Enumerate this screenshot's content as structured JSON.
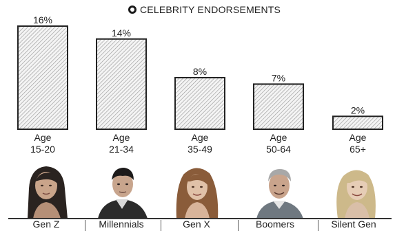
{
  "chart_data": {
    "type": "bar",
    "title": "CELEBRITY ENDORSEMENTS",
    "categories": [
      "Age\n15-20",
      "Age\n21-34",
      "Age\n35-49",
      "Age\n50-64",
      "Age\n65+"
    ],
    "category_lines": [
      [
        "Age",
        "15-20"
      ],
      [
        "Age",
        "21-34"
      ],
      [
        "Age",
        "35-49"
      ],
      [
        "Age",
        "50-64"
      ],
      [
        "Age",
        "65+"
      ]
    ],
    "values": [
      16,
      14,
      8,
      7,
      2
    ],
    "value_labels": [
      "16%",
      "14%",
      "8%",
      "7%",
      "2%"
    ],
    "ylim": [
      0,
      16
    ],
    "grid": false,
    "bar_fill": "hatched-light-gray",
    "bar_stroke": "#222222"
  },
  "generations": [
    "Gen Z",
    "Millennials",
    "Gen X",
    "Boomers",
    "Silent Gen"
  ],
  "portraits": [
    "young-woman-long-dark-hair",
    "young-man-short-dark-hair",
    "woman-wavy-auburn-hair",
    "older-man-gray-hair",
    "older-woman-blonde-hair"
  ],
  "colors": {
    "ink": "#222222",
    "bar_bg": "#f4f4f4",
    "hatch": "#9a9a9a"
  }
}
